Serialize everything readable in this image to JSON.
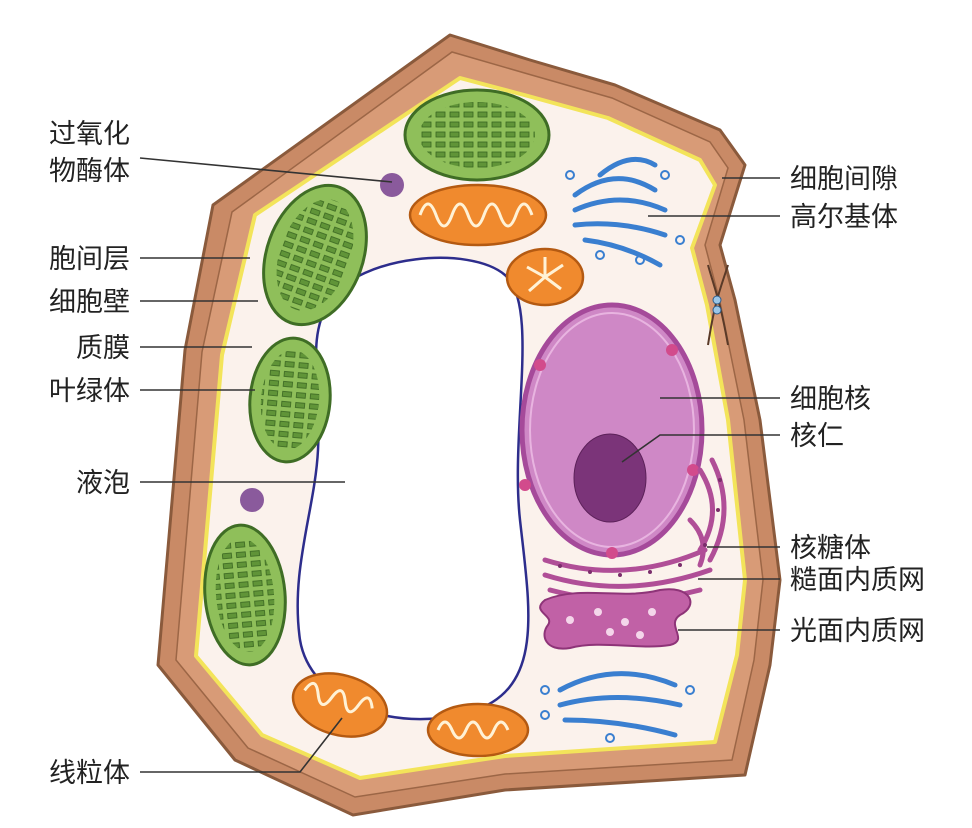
{
  "labels": {
    "peroxisome_line1": "过氧化",
    "peroxisome_line2": "物酶体",
    "middle_lamella": "胞间层",
    "cell_wall": "细胞壁",
    "plasma_membrane": "质膜",
    "chloroplast": "叶绿体",
    "vacuole": "液泡",
    "mitochondrion": "线粒体",
    "intercellular_space": "细胞间隙",
    "golgi": "高尔基体",
    "nucleus": "细胞核",
    "nucleolus": "核仁",
    "ribosome": "核糖体",
    "rough_er": "糙面内质网",
    "smooth_er": "光面内质网"
  },
  "colors": {
    "cell_wall": "#c98a66",
    "cell_wall_edge": "#8a5a3c",
    "cytoplasm": "#fbf2ec",
    "membrane": "#f3e45a",
    "chloroplast_fill": "#8fbf5a",
    "chloroplast_edge": "#3f6d25",
    "mitochondrion_fill": "#f08a2e",
    "vacuole_edge": "#2d2d8c",
    "golgi": "#3a7fd0",
    "nucleus_fill": "#cf88c6",
    "nucleus_edge": "#a54a9a",
    "nucleolus": "#7b3479",
    "er": "#b04e97",
    "peroxisome": "#8a5a9c"
  }
}
